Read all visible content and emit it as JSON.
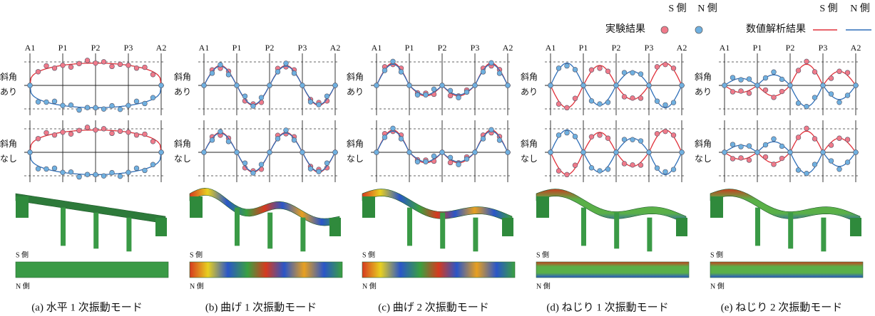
{
  "legend": {
    "experiment": {
      "label": "実験結果",
      "s": "S 側",
      "n": "N 側"
    },
    "analysis": {
      "label": "数値解析結果",
      "s": "S 側",
      "n": "N 側"
    }
  },
  "panels": [
    {
      "supports": [
        "A1",
        "P1",
        "P2",
        "P3",
        "A2"
      ],
      "rows": [
        [
          "斜角",
          "あり"
        ],
        [
          "斜角",
          "なし"
        ]
      ],
      "plan_labels": [
        "S 側",
        "N 側"
      ],
      "caption": "(a) 水平 1 次振動モード"
    },
    {
      "supports": [
        "A1",
        "P1",
        "P2",
        "P3",
        "A2"
      ],
      "rows": [
        [
          "斜角",
          "あり"
        ],
        [
          "斜角",
          "なし"
        ]
      ],
      "plan_labels": [
        "S 側",
        "N 側"
      ],
      "caption": "(b) 曲げ 1 次振動モード"
    },
    {
      "supports": [
        "A1",
        "P1",
        "P2",
        "P3",
        "A2"
      ],
      "rows": [
        [
          "斜角",
          "あり"
        ],
        [
          "斜角",
          "なし"
        ]
      ],
      "plan_labels": [
        "S 側",
        "N 側"
      ],
      "caption": "(c) 曲げ 2 次振動モード"
    },
    {
      "supports": [
        "A1",
        "P1",
        "P2",
        "P3",
        "A2"
      ],
      "rows": [
        [
          "斜角",
          "あり"
        ],
        [
          "斜角",
          "なし"
        ]
      ],
      "plan_labels": [
        "S 側",
        "N 側"
      ],
      "caption": "(d) ねじり 1 次振動モード"
    },
    {
      "supports": [
        "A1",
        "P1",
        "P2",
        "P3",
        "A2"
      ],
      "rows": [
        [
          "斜角",
          "あり"
        ],
        [
          "斜角",
          "なし"
        ]
      ],
      "plan_labels": [
        "S 側",
        "N 側"
      ],
      "caption": "(e) ねじり 2 次振動モード"
    }
  ]
}
